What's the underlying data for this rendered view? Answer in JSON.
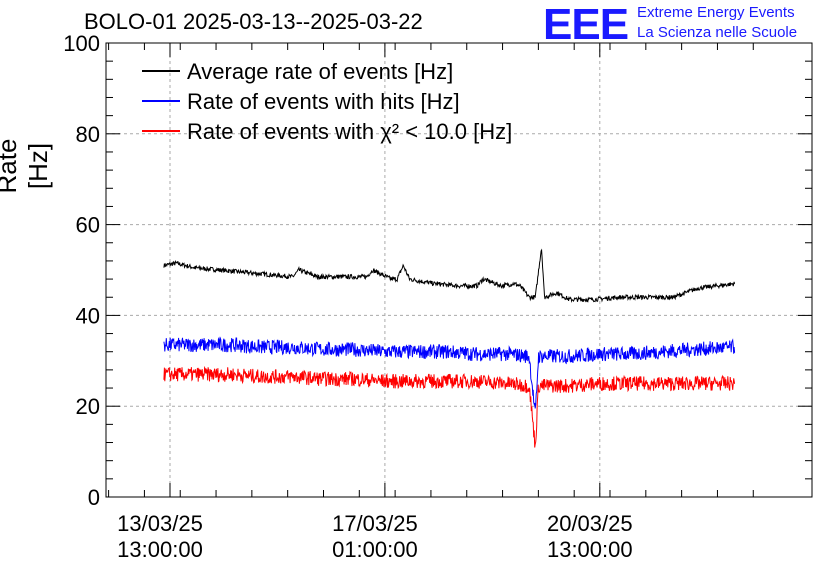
{
  "header": {
    "title": "BOLO-01 2025-03-13--2025-03-22",
    "logo": "EEE",
    "logo_line1": "Extreme Energy Events",
    "logo_line2": "La Scienza nelle Scuole"
  },
  "chart_data": {
    "type": "line",
    "title": "BOLO-01 2025-03-13--2025-03-22",
    "ylabel": "Rate [Hz]",
    "xlabel": "",
    "ylim": [
      0,
      100
    ],
    "y_ticks": [
      0,
      20,
      40,
      60,
      80,
      100
    ],
    "x_ticks": [
      {
        "x": 0,
        "line1": "13/03/25",
        "line2": "13:00:00"
      },
      {
        "x": 3.5,
        "line1": "17/03/25",
        "line2": "01:00:00"
      },
      {
        "x": 7,
        "line1": "20/03/25",
        "line2": "13:00:00"
      }
    ],
    "x_unit": "days since 13/03/25 13:00:00",
    "grid": true,
    "legend_position": "top-left",
    "series": [
      {
        "name": "Average rate of events [Hz]",
        "color": "#000000",
        "x": [
          -0.1,
          0.1,
          0.4,
          0.8,
          1.2,
          1.6,
          2.0,
          2.1,
          2.4,
          2.9,
          3.2,
          3.3,
          3.6,
          3.7,
          3.8,
          3.9,
          4.3,
          4.7,
          5.0,
          5.1,
          5.4,
          5.6,
          5.7,
          5.85,
          5.95,
          6.05,
          6.1,
          6.3,
          6.5,
          6.9,
          7.3,
          7.8,
          8.2,
          8.6,
          9.2
        ],
        "y": [
          51,
          51.5,
          50.5,
          50,
          49.5,
          49,
          48.5,
          50,
          48.5,
          48.5,
          48.5,
          50,
          48,
          48,
          51,
          48,
          47,
          46.5,
          46.5,
          48,
          46.5,
          47,
          46.5,
          44,
          44,
          55,
          44,
          45,
          43.5,
          43.5,
          44,
          44,
          44,
          46,
          47
        ]
      },
      {
        "name": "Rate of events with hits [Hz]",
        "color": "#0000ff",
        "x": [
          -0.1,
          0.5,
          1.0,
          1.5,
          2.0,
          2.5,
          3.0,
          3.5,
          4.0,
          4.5,
          5.0,
          5.5,
          5.85,
          5.95,
          6.0,
          6.1,
          6.5,
          7.0,
          7.5,
          8.0,
          8.5,
          9.2
        ],
        "y": [
          33.5,
          33.5,
          33.5,
          33,
          33,
          32.5,
          32.5,
          32,
          32,
          32,
          31.5,
          31.5,
          31,
          18,
          31,
          31,
          31,
          31.5,
          31.5,
          32,
          32.5,
          33
        ]
      },
      {
        "name": "Rate of events with χ² < 10.0 [Hz]",
        "color": "#ff0000",
        "x": [
          -0.1,
          0.5,
          1.0,
          1.5,
          2.0,
          2.5,
          3.0,
          3.5,
          4.0,
          4.5,
          5.0,
          5.5,
          5.85,
          5.95,
          6.0,
          6.1,
          6.5,
          7.0,
          7.5,
          8.0,
          8.5,
          9.2
        ],
        "y": [
          27,
          27,
          27,
          26.5,
          26.5,
          26,
          26,
          25.5,
          25.5,
          25.5,
          25.5,
          25,
          24.5,
          11,
          24.5,
          24.5,
          24.5,
          25,
          25,
          25,
          25,
          25
        ]
      }
    ]
  }
}
